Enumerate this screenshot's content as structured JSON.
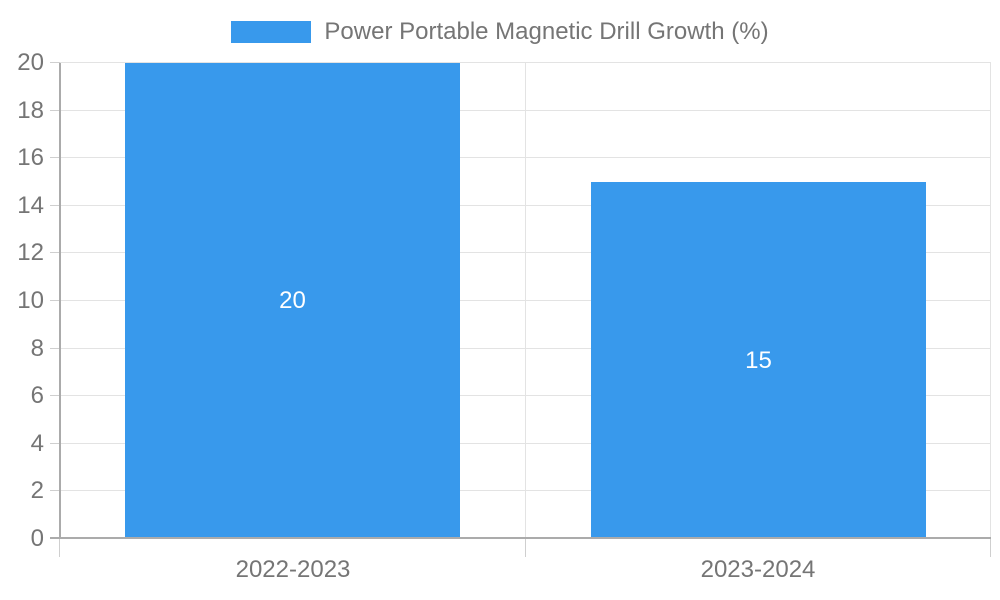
{
  "chart_data": {
    "type": "bar",
    "title": "",
    "legend": "Power Portable Magnetic Drill Growth (%)",
    "legend_position": "top",
    "categories": [
      "2022-2023",
      "2023-2024"
    ],
    "series": [
      {
        "name": "Power Portable Magnetic Drill Growth (%)",
        "values": [
          20,
          15
        ]
      }
    ],
    "value_labels_shown": true,
    "xlabel": "",
    "ylabel": "",
    "ylim": [
      0,
      20
    ],
    "ytick_step": 2,
    "yticks": [
      0,
      2,
      4,
      6,
      8,
      10,
      12,
      14,
      16,
      18,
      20
    ],
    "grid": true,
    "colors": {
      "bar": "#3899EC",
      "axis_text": "#757575",
      "grid_line": "#e3e3e3",
      "axis_line": "#ababab",
      "tick_mark": "#cfcfcf",
      "value_label": "#ffffff",
      "background": "#ffffff"
    }
  }
}
